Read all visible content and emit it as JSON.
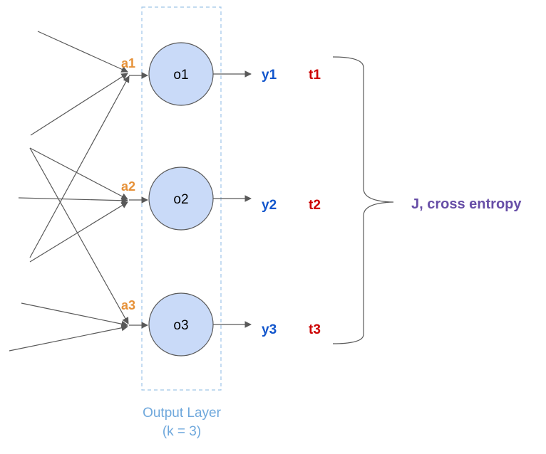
{
  "colors": {
    "activation": "#e69138",
    "output": "#1155cc",
    "target": "#cc0000",
    "loss": "#674ea7",
    "caption": "#6fa8dc",
    "node_fill": "#c9daf8",
    "node_stroke": "#595959",
    "edge": "#595959",
    "layer_box": "#9fc5e8"
  },
  "layer": {
    "caption_line1": "Output Layer",
    "caption_line2": "(k = 3)"
  },
  "nodes": [
    {
      "label": "o1",
      "activation": "a1",
      "output": "y1",
      "target": "t1"
    },
    {
      "label": "o2",
      "activation": "a2",
      "output": "y2",
      "target": "t2"
    },
    {
      "label": "o3",
      "activation": "a3",
      "output": "y3",
      "target": "t3"
    }
  ],
  "loss": {
    "label": "J, cross entropy"
  }
}
